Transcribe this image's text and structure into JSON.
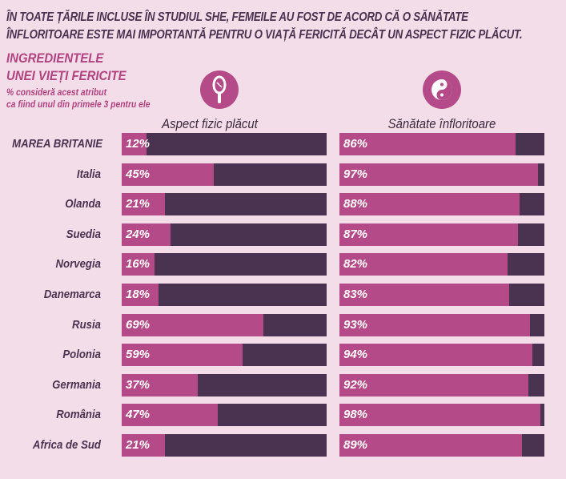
{
  "headline": [
    "ÎN TOATE ȚĂRILE INCLUSE ÎN STUDIUL SHE, FEMEILE AU FOST DE ACORD CĂ O SĂNĂTATE",
    "ÎNFLORITOARE ESTE MAI IMPORTANTĂ PENTRU O VIAȚĂ FERICITĂ DECÂT UN ASPECT FIZIC PLĂCUT."
  ],
  "subtitle": [
    "INGREDIENTELE",
    "UNEI VIEȚI FERICITE"
  ],
  "note": [
    "% consideră acest atribut",
    "ca fiind unul din primele 3 pentru ele"
  ],
  "colors": {
    "background": "#f3dde9",
    "fill": "#b44a87",
    "rest": "#4a3350"
  },
  "chart_data": {
    "type": "bar",
    "orientation": "horizontal",
    "categories": [
      "MAREA BRITANIE",
      "Italia",
      "Olanda",
      "Suedia",
      "Norvegia",
      "Danemarca",
      "Rusia",
      "Polonia",
      "Germania",
      "România",
      "Africa de Sud"
    ],
    "series": [
      {
        "name": "Aspect fizic plăcut",
        "icon": "hand-mirror-icon",
        "values": [
          12,
          45,
          21,
          24,
          16,
          18,
          69,
          59,
          37,
          47,
          21
        ]
      },
      {
        "name": "Sănătate înfloritoare",
        "icon": "yin-yang-icon",
        "values": [
          86,
          97,
          88,
          87,
          82,
          83,
          93,
          94,
          92,
          98,
          89
        ]
      }
    ],
    "xlim": [
      0,
      100
    ],
    "unit": "%"
  }
}
